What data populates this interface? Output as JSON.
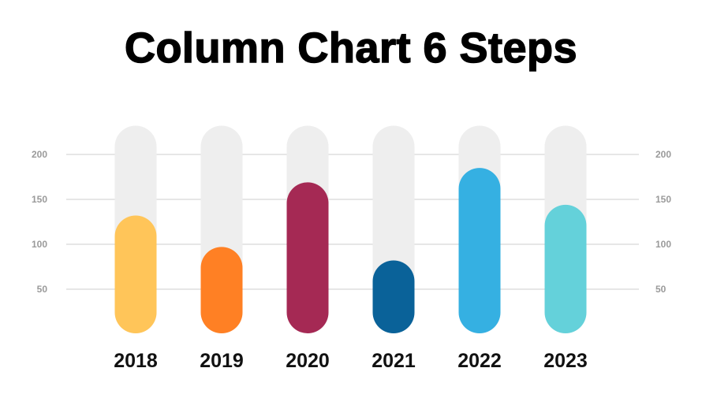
{
  "chart_data": {
    "type": "bar",
    "title": "Column Chart 6 Steps",
    "categories": [
      "2018",
      "2019",
      "2020",
      "2021",
      "2022",
      "2023"
    ],
    "values": [
      132,
      97,
      169,
      82,
      185,
      144
    ],
    "track_max": 232,
    "colors": [
      "#FFC559",
      "#FF8024",
      "#A52954",
      "#0A6299",
      "#35B0E2",
      "#64D1DA"
    ],
    "track_color": "#EEEEEE",
    "grid_color": "#DDDDDD",
    "yticks": [
      50,
      100,
      150,
      200
    ],
    "ylim": [
      0,
      232
    ],
    "grid": true,
    "xlabel": "",
    "ylabel": ""
  }
}
